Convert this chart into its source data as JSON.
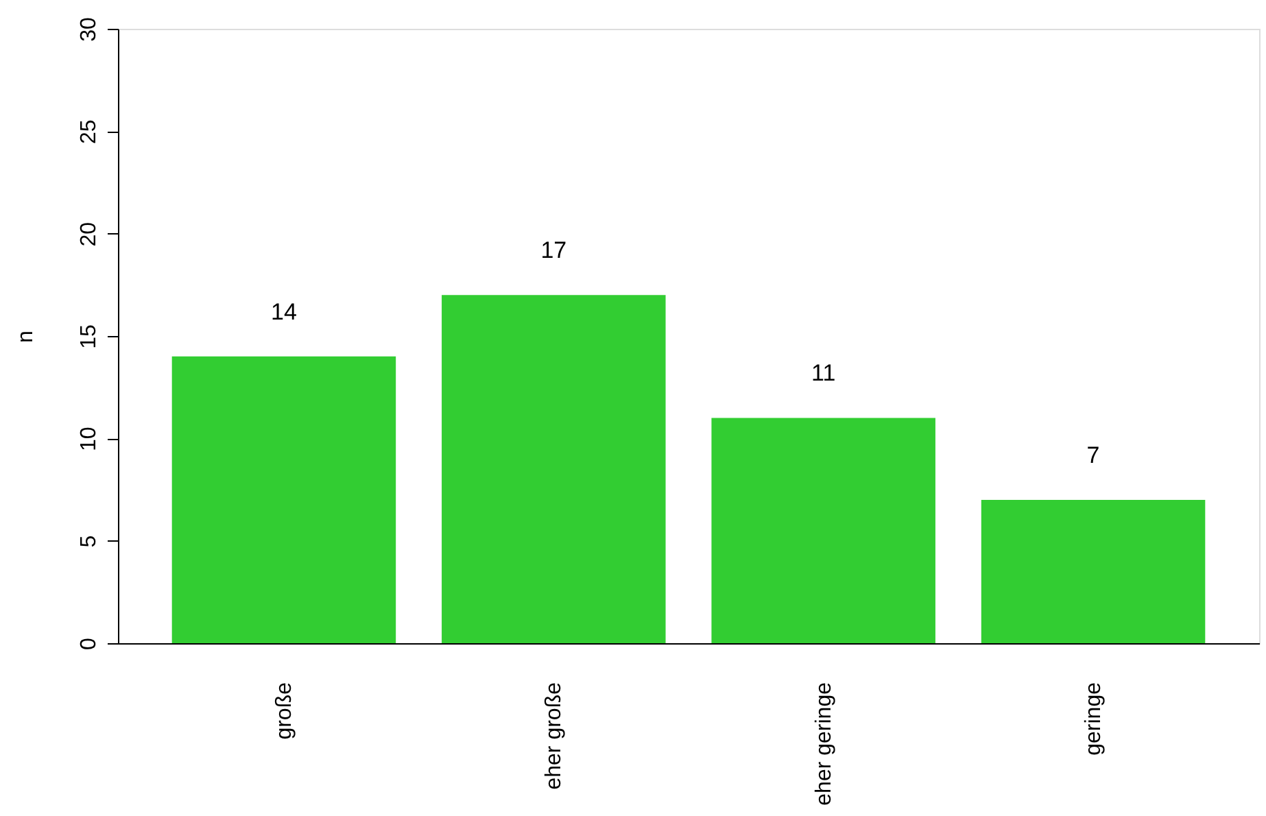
{
  "chart_data": {
    "type": "bar",
    "ylabel": "n",
    "categories": [
      "große",
      "eher große",
      "eher geringe",
      "geringe"
    ],
    "values": [
      14,
      17,
      11,
      7
    ],
    "color": "#32cd32",
    "ylim": [
      0,
      30
    ],
    "yticks": [
      0,
      5,
      10,
      15,
      20,
      25,
      30
    ],
    "grid": false,
    "data_labels": true
  }
}
